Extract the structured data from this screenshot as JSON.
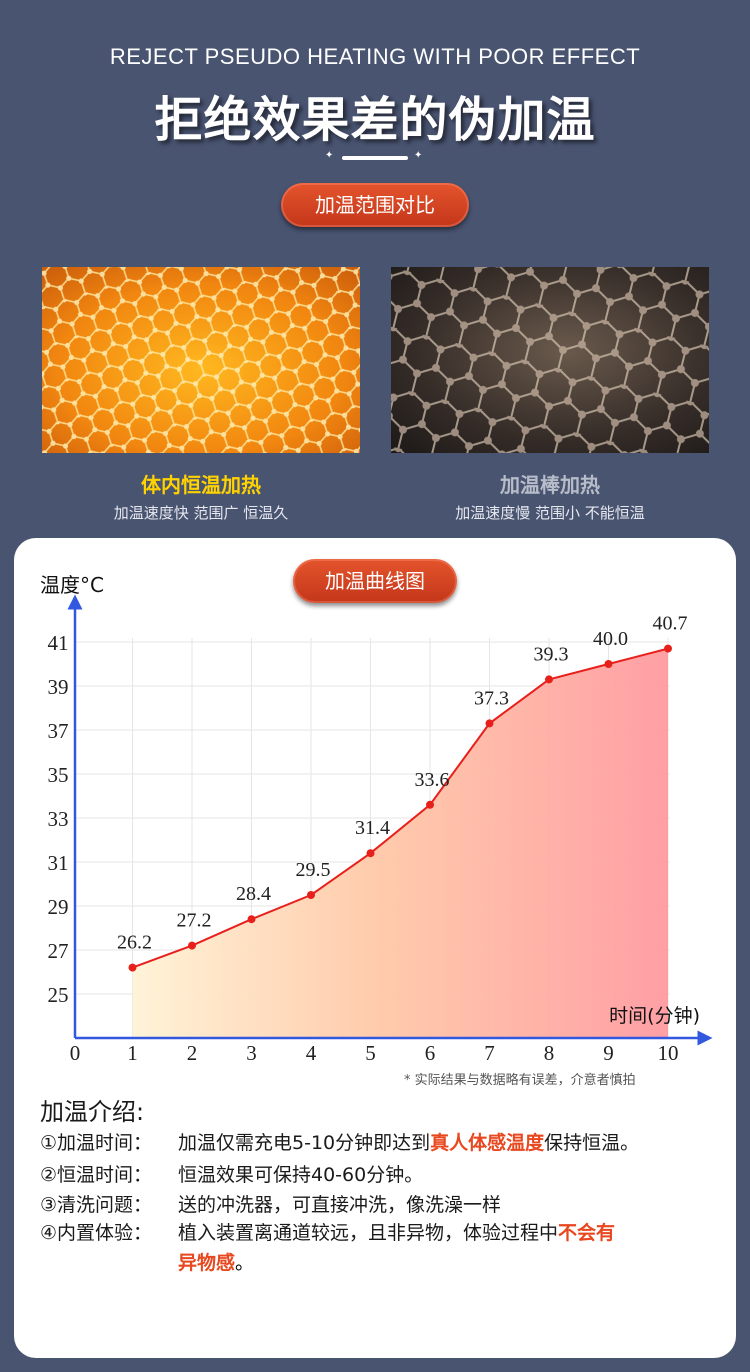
{
  "header": {
    "en_title": "REJECT PSEUDO HEATING WITH POOR EFFECT",
    "cn_title": "拒绝效果差的伪加温",
    "compare_button": "加温范围对比"
  },
  "comparison": {
    "left": {
      "title": "体内恒温加热",
      "subtitle": "加温速度快 范围广 恒温久",
      "color": "#ffd200"
    },
    "right": {
      "title": "加温棒加热",
      "subtitle": "加温速度慢 范围小 不能恒温",
      "color": "#b7bcc9"
    }
  },
  "chart_section": {
    "button": "加温曲线图",
    "note": "* 实际结果与数据略有误差，介意者慎拍"
  },
  "chart_data": {
    "type": "area",
    "ylabel": "温度°C",
    "xlabel": "时间(分钟)",
    "x": [
      1,
      2,
      3,
      4,
      5,
      6,
      7,
      8,
      9,
      10
    ],
    "values": [
      26.2,
      27.2,
      28.4,
      29.5,
      31.4,
      33.6,
      37.3,
      39.3,
      40.0,
      40.7
    ],
    "value_labels": [
      "26.2",
      "27.2",
      "28.4",
      "29.5",
      "31.4",
      "33.6",
      "37.3",
      "39.3",
      "40.0",
      "40.7"
    ],
    "x_ticks": [
      "0",
      "1",
      "2",
      "3",
      "4",
      "5",
      "6",
      "7",
      "8",
      "9",
      "10"
    ],
    "y_ticks": [
      "25",
      "27",
      "29",
      "31",
      "33",
      "35",
      "37",
      "39",
      "41"
    ],
    "xlim": [
      0,
      10
    ],
    "ylim": [
      23,
      42
    ],
    "grid": true,
    "line_color": "#e8201c",
    "axis_color": "#3358e0"
  },
  "intro": {
    "title": "加温介绍:",
    "items": [
      {
        "label": "①加温时间：",
        "text": "加温仅需充电5-10分钟即达到",
        "highlight": "真人体感温度",
        "after": "保持恒温。"
      },
      {
        "label": "②恒温时间：",
        "text": "恒温效果可保持40-60分钟。"
      },
      {
        "label": "③清洗问题：",
        "text": "送的冲洗器，可直接冲洗，像洗澡一样"
      },
      {
        "label": "④内置体验：",
        "text": "植入装置离通道较远，且非异物，体验过程中",
        "highlight": "不会有",
        "continuation": "异物感",
        "after": "。"
      }
    ]
  }
}
